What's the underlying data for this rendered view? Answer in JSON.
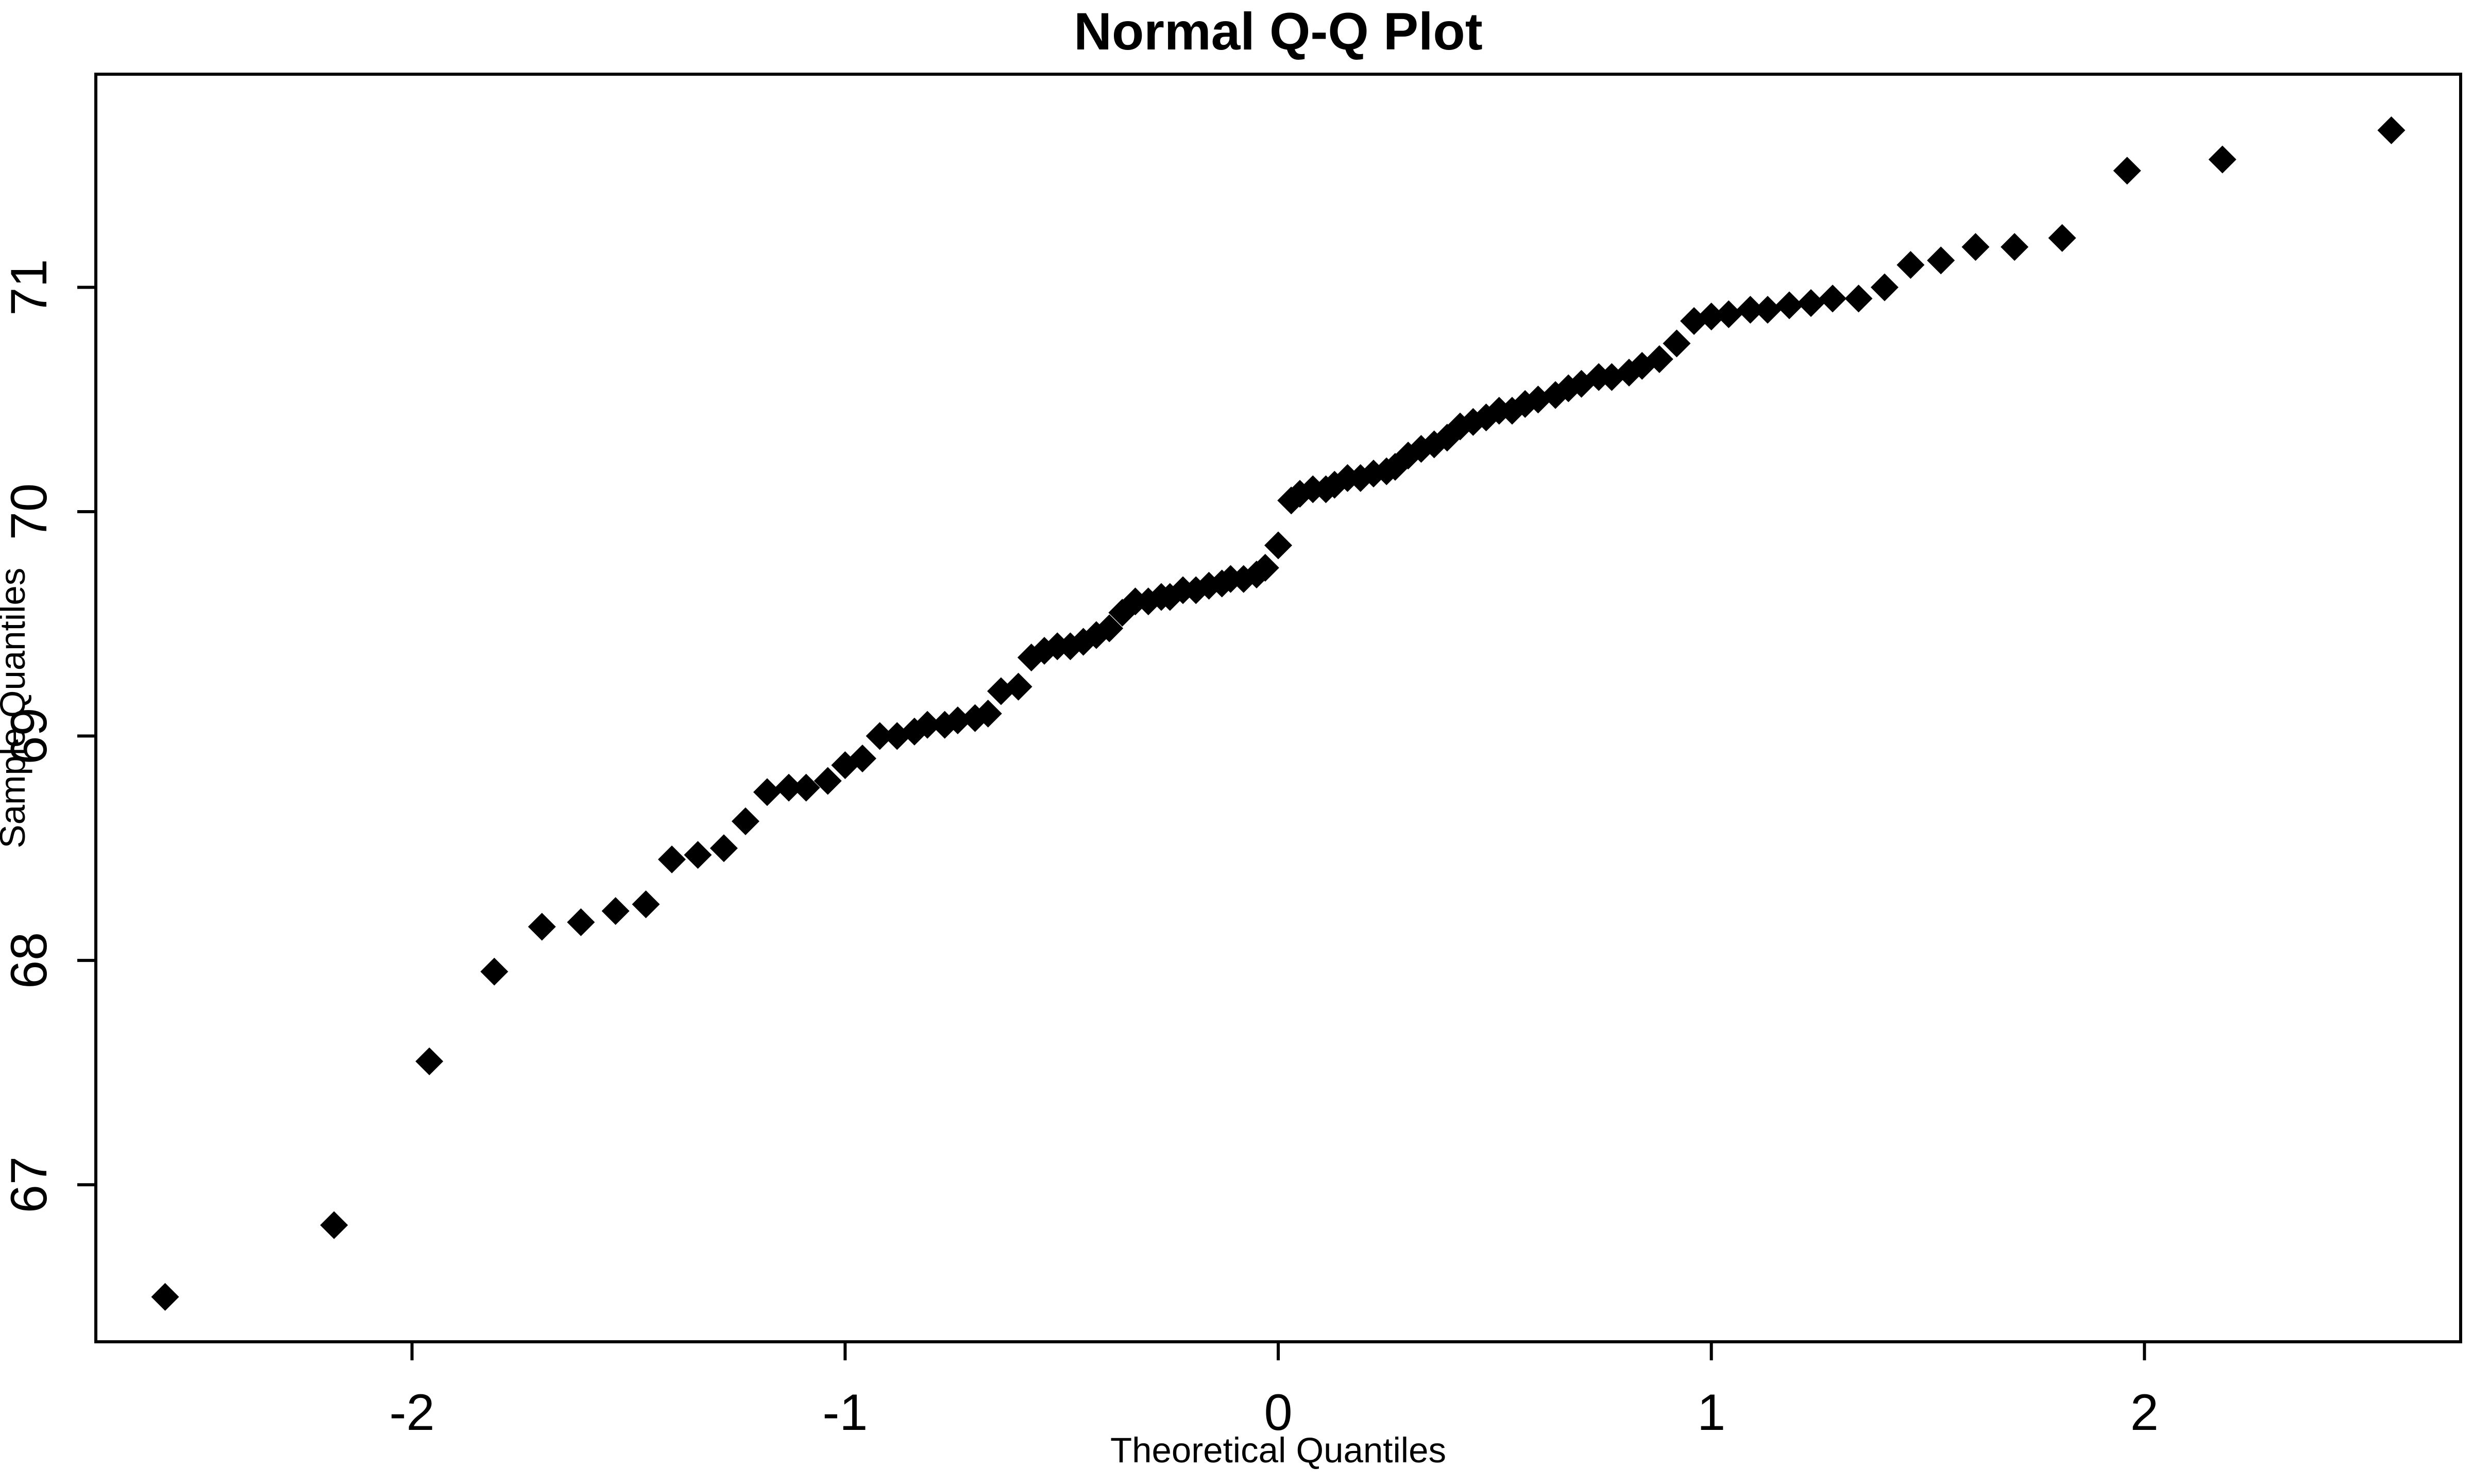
{
  "chart_data": {
    "type": "scatter",
    "title": "Normal Q-Q Plot",
    "xlabel": "Theoretical Quantiles",
    "ylabel": "Sample Quantiles",
    "marker": "diamond",
    "marker_color": "#000000",
    "axis_color": "#000000",
    "background_color": "#ffffff",
    "grid": false,
    "legend": false,
    "xlim": [
      -2.73,
      2.73
    ],
    "ylim": [
      66.3,
      71.95
    ],
    "x_ticks": [
      "-2",
      "-1",
      "0",
      "1",
      "2"
    ],
    "x_tick_values": [
      -2,
      -1,
      0,
      1,
      2
    ],
    "y_ticks": [
      "67",
      "68",
      "69",
      "70",
      "71"
    ],
    "y_tick_values": [
      67,
      68,
      69,
      70,
      71
    ],
    "points": [
      [
        -2.57,
        66.5
      ],
      [
        -2.18,
        66.82
      ],
      [
        -1.96,
        67.55
      ],
      [
        -1.81,
        67.95
      ],
      [
        -1.7,
        68.15
      ],
      [
        -1.61,
        68.17
      ],
      [
        -1.53,
        68.22
      ],
      [
        -1.46,
        68.25
      ],
      [
        -1.4,
        68.45
      ],
      [
        -1.34,
        68.47
      ],
      [
        -1.28,
        68.5
      ],
      [
        -1.23,
        68.62
      ],
      [
        -1.18,
        68.75
      ],
      [
        -1.13,
        68.77
      ],
      [
        -1.09,
        68.77
      ],
      [
        -1.04,
        68.8
      ],
      [
        -1.0,
        68.87
      ],
      [
        -0.96,
        68.9
      ],
      [
        -0.92,
        69.0
      ],
      [
        -0.88,
        69.0
      ],
      [
        -0.84,
        69.02
      ],
      [
        -0.81,
        69.05
      ],
      [
        -0.77,
        69.05
      ],
      [
        -0.74,
        69.07
      ],
      [
        -0.7,
        69.08
      ],
      [
        -0.67,
        69.1
      ],
      [
        -0.64,
        69.2
      ],
      [
        -0.6,
        69.22
      ],
      [
        -0.57,
        69.35
      ],
      [
        -0.54,
        69.38
      ],
      [
        -0.51,
        69.4
      ],
      [
        -0.48,
        69.4
      ],
      [
        -0.45,
        69.42
      ],
      [
        -0.42,
        69.45
      ],
      [
        -0.39,
        69.48
      ],
      [
        -0.36,
        69.55
      ],
      [
        -0.33,
        69.6
      ],
      [
        -0.3,
        69.6
      ],
      [
        -0.27,
        69.62
      ],
      [
        -0.25,
        69.62
      ],
      [
        -0.22,
        69.65
      ],
      [
        -0.19,
        69.65
      ],
      [
        -0.16,
        69.67
      ],
      [
        -0.13,
        69.68
      ],
      [
        -0.11,
        69.7
      ],
      [
        -0.08,
        69.7
      ],
      [
        -0.05,
        69.72
      ],
      [
        -0.03,
        69.75
      ],
      [
        0.0,
        69.85
      ],
      [
        0.03,
        70.05
      ],
      [
        0.05,
        70.08
      ],
      [
        0.08,
        70.1
      ],
      [
        0.11,
        70.1
      ],
      [
        0.13,
        70.12
      ],
      [
        0.16,
        70.15
      ],
      [
        0.19,
        70.15
      ],
      [
        0.22,
        70.17
      ],
      [
        0.25,
        70.18
      ],
      [
        0.27,
        70.2
      ],
      [
        0.3,
        70.25
      ],
      [
        0.33,
        70.28
      ],
      [
        0.36,
        70.3
      ],
      [
        0.39,
        70.33
      ],
      [
        0.42,
        70.38
      ],
      [
        0.45,
        70.4
      ],
      [
        0.48,
        70.42
      ],
      [
        0.51,
        70.45
      ],
      [
        0.54,
        70.45
      ],
      [
        0.57,
        70.48
      ],
      [
        0.6,
        70.5
      ],
      [
        0.64,
        70.52
      ],
      [
        0.67,
        70.55
      ],
      [
        0.7,
        70.57
      ],
      [
        0.74,
        70.6
      ],
      [
        0.77,
        70.6
      ],
      [
        0.81,
        70.62
      ],
      [
        0.84,
        70.65
      ],
      [
        0.88,
        70.68
      ],
      [
        0.92,
        70.75
      ],
      [
        0.96,
        70.85
      ],
      [
        1.0,
        70.87
      ],
      [
        1.04,
        70.88
      ],
      [
        1.09,
        70.9
      ],
      [
        1.13,
        70.9
      ],
      [
        1.18,
        70.92
      ],
      [
        1.23,
        70.93
      ],
      [
        1.28,
        70.95
      ],
      [
        1.34,
        70.95
      ],
      [
        1.4,
        71.0
      ],
      [
        1.46,
        71.1
      ],
      [
        1.53,
        71.12
      ],
      [
        1.61,
        71.18
      ],
      [
        1.7,
        71.18
      ],
      [
        1.81,
        71.22
      ],
      [
        1.96,
        71.52
      ],
      [
        2.18,
        71.57
      ],
      [
        2.57,
        71.7
      ]
    ]
  }
}
